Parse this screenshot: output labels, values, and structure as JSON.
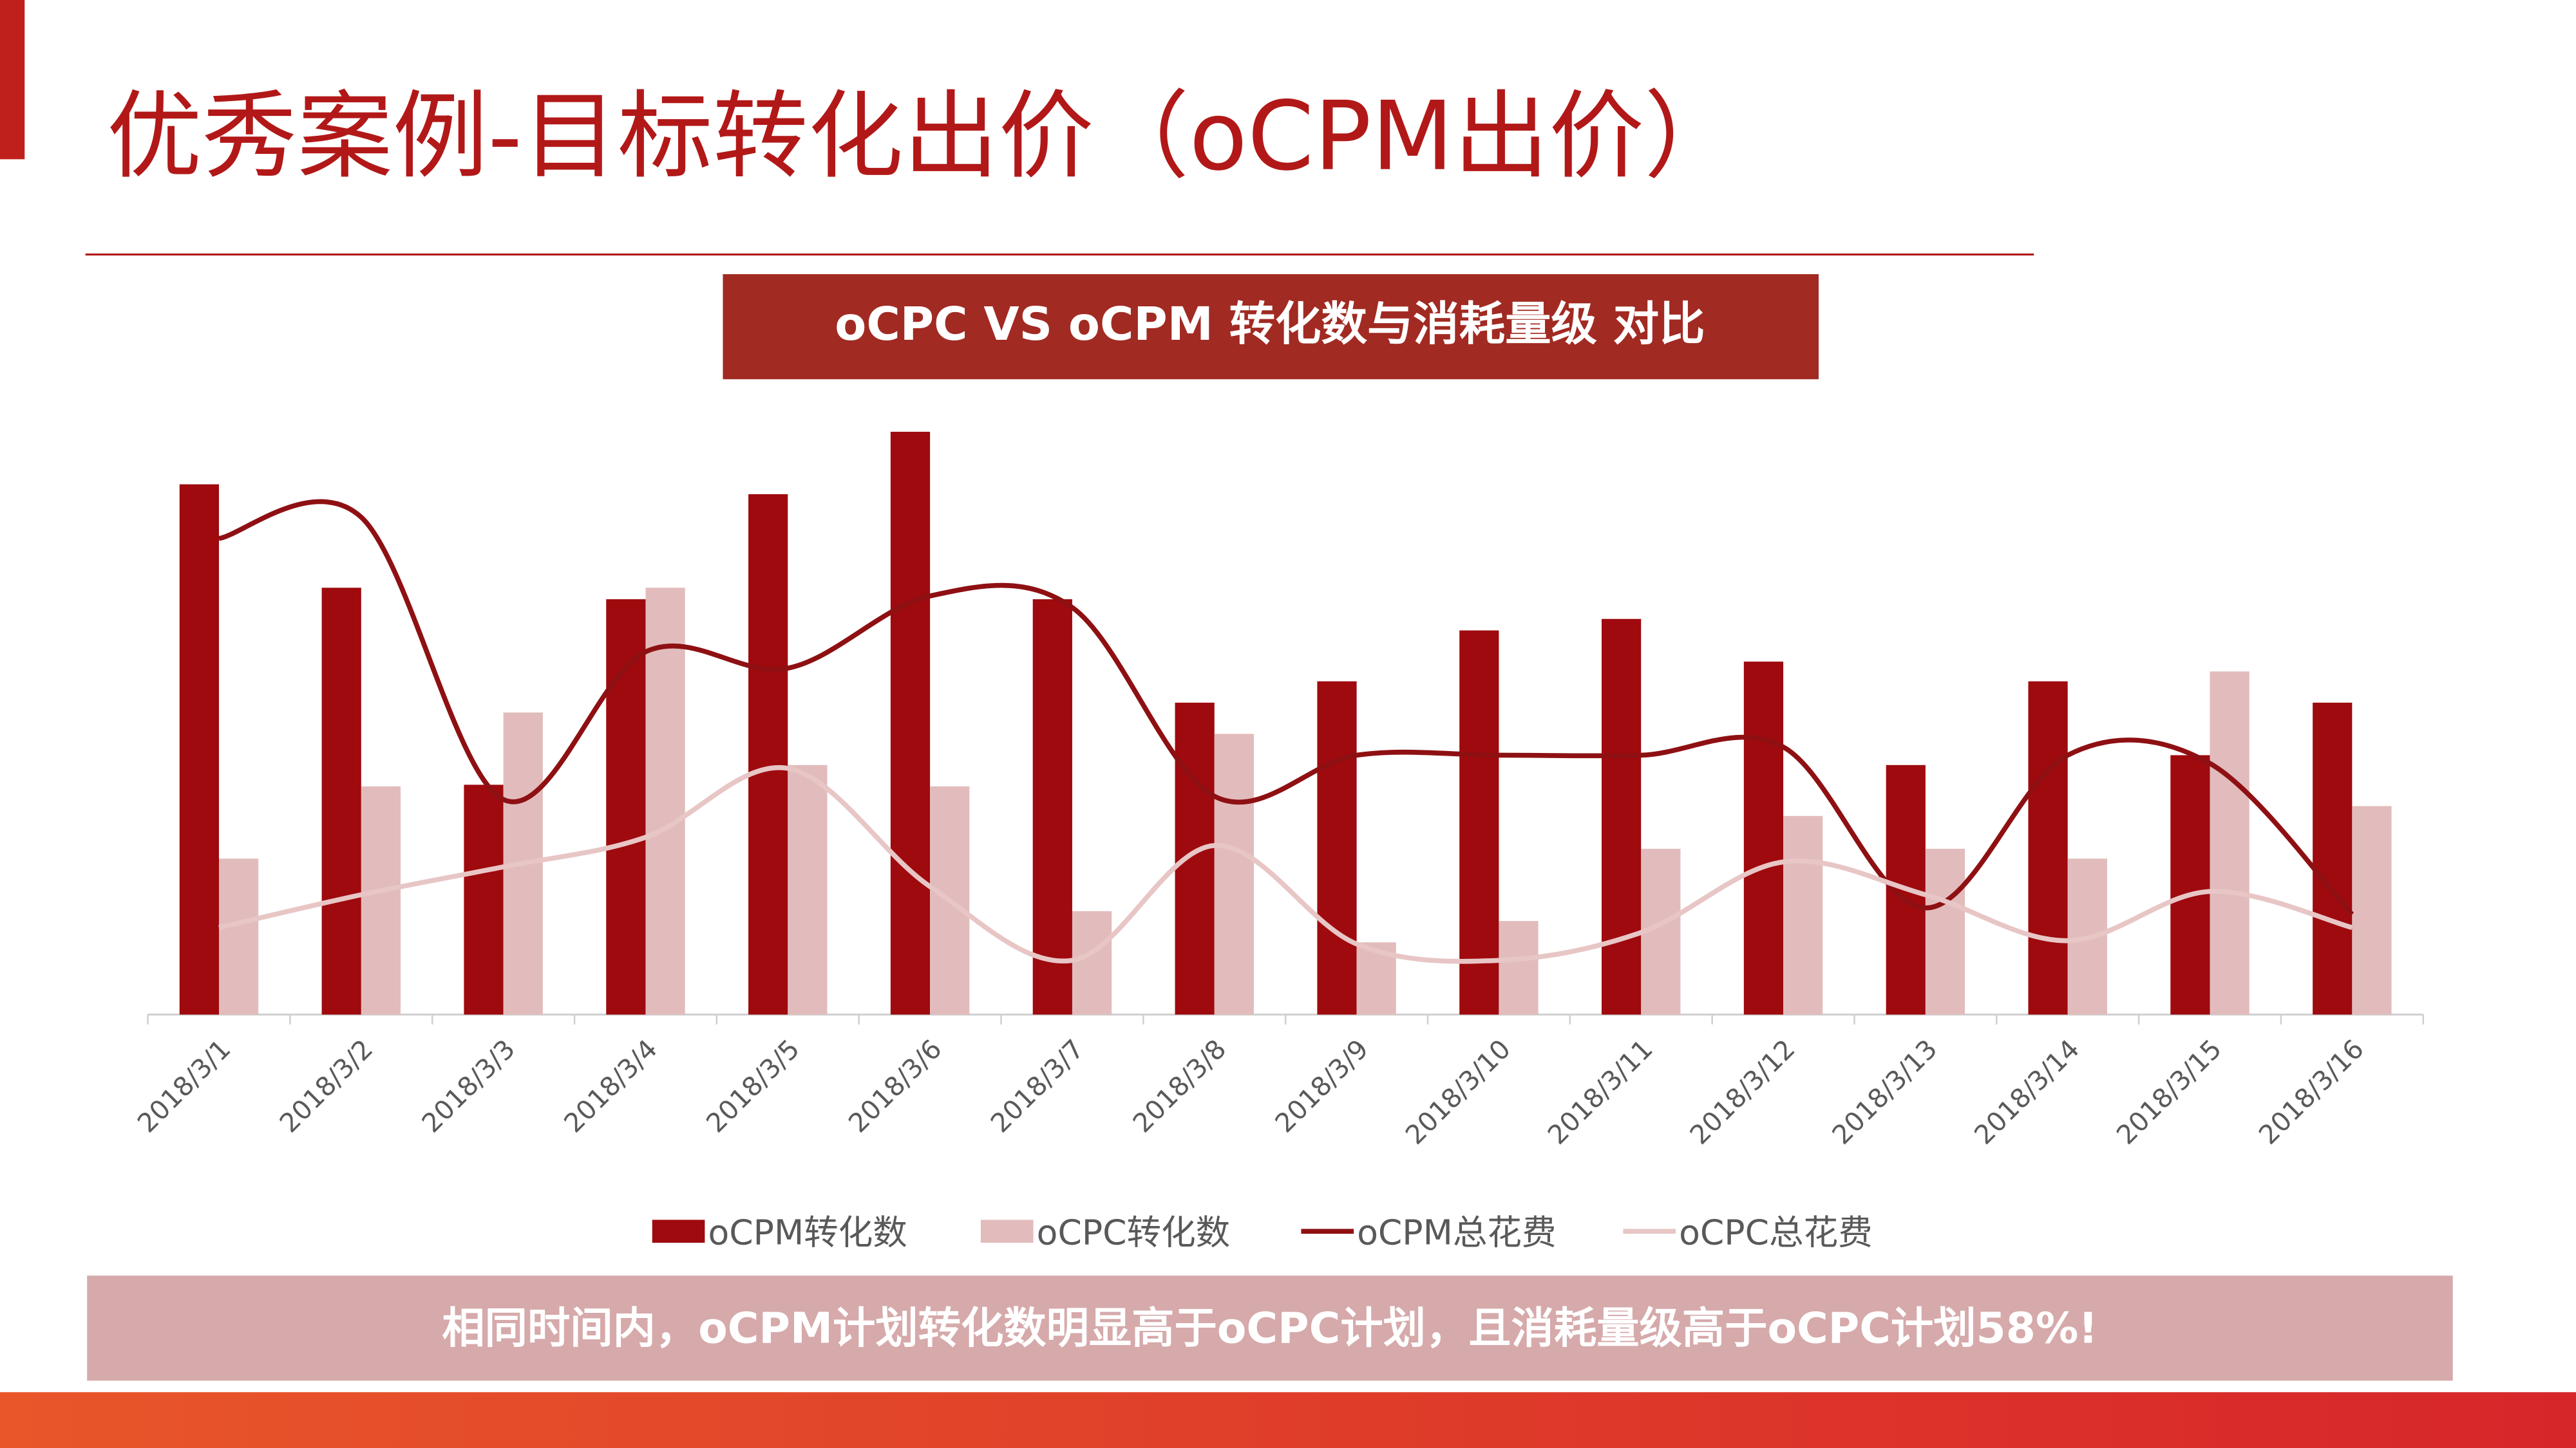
{
  "page": {
    "title": "优秀案例-目标转化出价（oCPM出价）",
    "footer_note": "相同时间内，oCPM计划转化数明显高于oCPC计划，且消耗量级高于oCPC计划58%!"
  },
  "chart_data": {
    "type": "combo",
    "title": "oCPC VS oCPM 转化数与消耗量级 对比",
    "categories": [
      "2018/3/1",
      "2018/3/2",
      "2018/3/3",
      "2018/3/4",
      "2018/3/5",
      "2018/3/6",
      "2018/3/7",
      "2018/3/8",
      "2018/3/9",
      "2018/3/10",
      "2018/3/11",
      "2018/3/12",
      "2018/3/13",
      "2018/3/14",
      "2018/3/15",
      "2018/3/16"
    ],
    "ylim": [
      0,
      360
    ],
    "legend": "bottom",
    "series": [
      {
        "name": "oCPM转化数",
        "type": "bar",
        "color": "#9e0a0e",
        "values": [
          323,
          260,
          140,
          253,
          317,
          355,
          253,
          190,
          203,
          234,
          241,
          215,
          152,
          203,
          158,
          190
        ]
      },
      {
        "name": "oCPC转化数",
        "type": "bar",
        "color": "#e2bcbc",
        "values": [
          95,
          139,
          184,
          260,
          152,
          139,
          63,
          171,
          44,
          57,
          101,
          121,
          101,
          95,
          209,
          127
        ]
      },
      {
        "name": "oCPM总花费",
        "type": "line",
        "color": "#8e1013",
        "values": [
          290,
          303,
          131,
          221,
          211,
          255,
          248,
          133,
          158,
          158,
          158,
          163,
          65,
          158,
          153,
          61
        ]
      },
      {
        "name": "oCPC总花费",
        "type": "line",
        "color": "#e8c6c6",
        "values": [
          53,
          73,
          90,
          108,
          150,
          78,
          33,
          103,
          43,
          33,
          50,
          93,
          73,
          45,
          75,
          53
        ]
      }
    ]
  }
}
